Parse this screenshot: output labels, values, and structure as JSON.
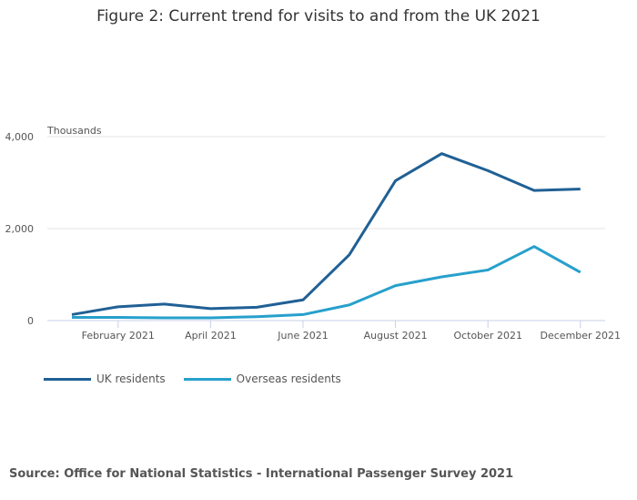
{
  "chart_data": {
    "type": "line",
    "title": "Figure 2: Current trend for visits to and from the UK 2021",
    "ylabel": "Thousands",
    "xlabel": "",
    "x": [
      "January 2021",
      "February 2021",
      "March 2021",
      "April 2021",
      "May 2021",
      "June 2021",
      "July 2021",
      "August 2021",
      "September 2021",
      "October 2021",
      "November 2021",
      "December 2021"
    ],
    "xtick_labels": [
      "February 2021",
      "April 2021",
      "June 2021",
      "August 2021",
      "October 2021",
      "December 2021"
    ],
    "ytick_labels": [
      "0",
      "2,000",
      "4,000"
    ],
    "yticks": [
      0,
      2000,
      4000
    ],
    "ylim": [
      0,
      4000
    ],
    "grid": true,
    "legend_position": "bottom-left",
    "series": [
      {
        "name": "UK residents",
        "color": "#206095",
        "values": [
          130,
          300,
          360,
          260,
          290,
          450,
          1430,
          3040,
          3630,
          3260,
          2830,
          2860
        ]
      },
      {
        "name": "Overseas residents",
        "color": "#27a0cc",
        "values": [
          70,
          70,
          60,
          60,
          85,
          130,
          340,
          760,
          950,
          1100,
          1610,
          1050
        ]
      }
    ]
  },
  "source": "Source: Office for National Statistics - International Passenger Survey 2021"
}
